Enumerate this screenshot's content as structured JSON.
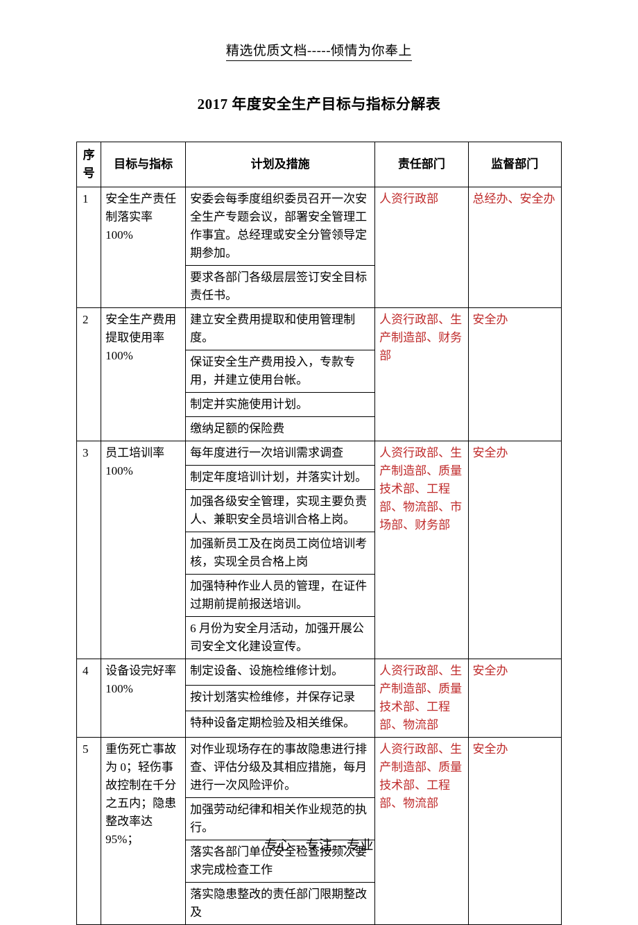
{
  "header_text": "精选优质文档-----倾情为你奉上",
  "title": "2017 年度安全生产目标与指标分解表",
  "headers": {
    "seq": "序号",
    "target": "目标与指标",
    "plan": "计划及措施",
    "resp": "责任部门",
    "sup": "监督部门"
  },
  "rows": [
    {
      "seq": "1",
      "target": "安全生产责任制落实率 100%",
      "plans": [
        "安委会每季度组织委员召开一次安全生产专题会议，部署安全管理工作事宜。总经理或安全分管领导定期参加。",
        "要求各部门各级层层签订安全目标责任书。"
      ],
      "resp": "人资行政部",
      "sup": "总经办、安全办"
    },
    {
      "seq": "2",
      "target": "安全生产费用提取使用率100%",
      "plans": [
        "建立安全费用提取和使用管理制度。",
        "保证安全生产费用投入，专款专用，并建立使用台帐。",
        "制定并实施使用计划。",
        "缴纳足额的保险费"
      ],
      "resp": "人资行政部、生产制造部、财务部",
      "sup": "安全办"
    },
    {
      "seq": "3",
      "target": "员工培训率100%",
      "plans": [
        "每年度进行一次培训需求调查",
        "制定年度培训计划，并落实计划。",
        "加强各级安全管理，实现主要负责人、兼职安全员培训合格上岗。",
        "加强新员工及在岗员工岗位培训考核，实现全员合格上岗",
        "加强特种作业人员的管理，在证件过期前提前报送培训。",
        "6 月份为安全月活动，加强开展公司安全文化建设宣传。"
      ],
      "resp": "人资行政部、生产制造部、质量技术部、工程部、物流部、市场部、财务部",
      "sup": "安全办"
    },
    {
      "seq": "4",
      "target": "设备设完好率100%",
      "plans": [
        "制定设备、设施检维修计划。",
        "按计划落实检维修，并保存记录",
        "特种设备定期检验及相关维保。"
      ],
      "resp": "人资行政部、生产制造部、质量技术部、工程部、物流部",
      "sup": "安全办"
    },
    {
      "seq": "5",
      "target": "重伤死亡事故为 0；轻伤事故控制在千分之五内；隐患整改率达95%；",
      "plans": [
        "对作业现场存在的事故隐患进行排查、评估分级及其相应措施，每月进行一次风险评价。",
        "加强劳动纪律和相关作业规范的执行。",
        "落实各部门单位安全检查按频次要求完成检查工作",
        "落实隐患整改的责任部门限期整改及"
      ],
      "resp": "人资行政部、生产制造部、质量技术部、工程部、物流部",
      "sup": "安全办"
    }
  ],
  "footer_text": "专心---专注---专业",
  "colors": {
    "text": "#000000",
    "red": "#bf2a2a",
    "bg": "#ffffff"
  }
}
